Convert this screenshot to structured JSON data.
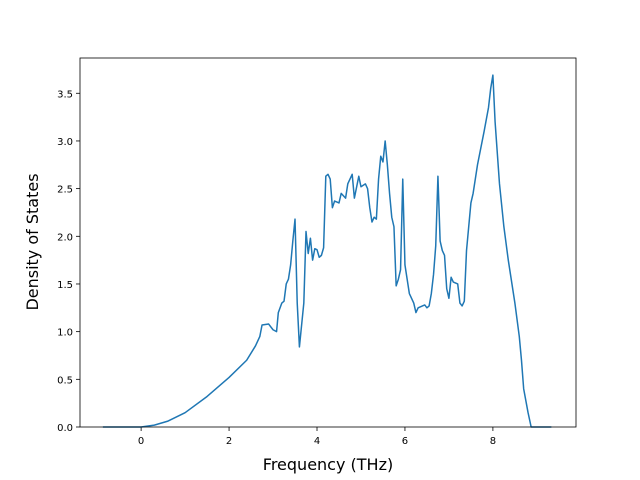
{
  "chart_data": {
    "type": "line",
    "xlabel": "Frequency (THz)",
    "ylabel": "Density of States",
    "color": "#1f77b4",
    "x": [
      -0.87,
      0,
      0.3,
      0.6,
      1.0,
      1.5,
      2.0,
      2.4,
      2.6,
      2.7,
      2.75,
      2.9,
      3.0,
      3.08,
      3.12,
      3.2,
      3.25,
      3.3,
      3.35,
      3.4,
      3.45,
      3.5,
      3.55,
      3.6,
      3.7,
      3.75,
      3.8,
      3.85,
      3.9,
      3.95,
      4.0,
      4.05,
      4.1,
      4.15,
      4.2,
      4.25,
      4.3,
      4.35,
      4.4,
      4.5,
      4.55,
      4.65,
      4.7,
      4.8,
      4.85,
      4.95,
      5.0,
      5.1,
      5.15,
      5.2,
      5.25,
      5.3,
      5.35,
      5.4,
      5.45,
      5.5,
      5.55,
      5.6,
      5.65,
      5.7,
      5.75,
      5.8,
      5.85,
      5.9,
      5.95,
      6.0,
      6.05,
      6.1,
      6.2,
      6.25,
      6.3,
      6.45,
      6.5,
      6.55,
      6.6,
      6.65,
      6.7,
      6.75,
      6.8,
      6.85,
      6.9,
      6.95,
      7.0,
      7.05,
      7.1,
      7.2,
      7.25,
      7.3,
      7.35,
      7.4,
      7.5,
      7.55,
      7.65,
      7.8,
      7.9,
      7.95,
      8.0,
      8.05,
      8.15,
      8.25,
      8.35,
      8.5,
      8.6,
      8.65,
      8.7,
      8.8,
      8.87,
      9.33
    ],
    "values": [
      0,
      0,
      0.02,
      0.06,
      0.15,
      0.32,
      0.52,
      0.7,
      0.85,
      0.95,
      1.07,
      1.08,
      1.02,
      1.0,
      1.2,
      1.3,
      1.32,
      1.5,
      1.55,
      1.7,
      1.95,
      2.18,
      1.3,
      0.84,
      1.3,
      2.05,
      1.82,
      1.98,
      1.75,
      1.87,
      1.86,
      1.78,
      1.8,
      1.88,
      2.63,
      2.65,
      2.6,
      2.3,
      2.37,
      2.35,
      2.45,
      2.4,
      2.55,
      2.65,
      2.4,
      2.63,
      2.52,
      2.55,
      2.5,
      2.3,
      2.15,
      2.2,
      2.18,
      2.6,
      2.84,
      2.78,
      3.0,
      2.75,
      2.45,
      2.2,
      2.1,
      1.48,
      1.55,
      1.65,
      2.6,
      1.7,
      1.55,
      1.4,
      1.3,
      1.2,
      1.25,
      1.28,
      1.25,
      1.27,
      1.4,
      1.6,
      1.9,
      2.63,
      1.95,
      1.85,
      1.8,
      1.45,
      1.35,
      1.57,
      1.52,
      1.5,
      1.3,
      1.27,
      1.32,
      1.85,
      2.35,
      2.45,
      2.75,
      3.1,
      3.35,
      3.55,
      3.69,
      3.2,
      2.55,
      2.1,
      1.75,
      1.3,
      0.95,
      0.7,
      0.4,
      0.15,
      0,
      0
    ],
    "xlim": [
      -1.39,
      9.89
    ],
    "ylim": [
      0,
      3.87
    ],
    "xticks": [
      0,
      2,
      4,
      6,
      8
    ],
    "yticks": [
      {
        "value": 0,
        "label": "0.0"
      },
      0.5,
      {
        "value": 1,
        "label": "1.0"
      },
      1.5,
      {
        "value": 2,
        "label": "2.0"
      },
      2.5,
      {
        "value": 3,
        "label": "3.0"
      },
      3.5
    ]
  }
}
